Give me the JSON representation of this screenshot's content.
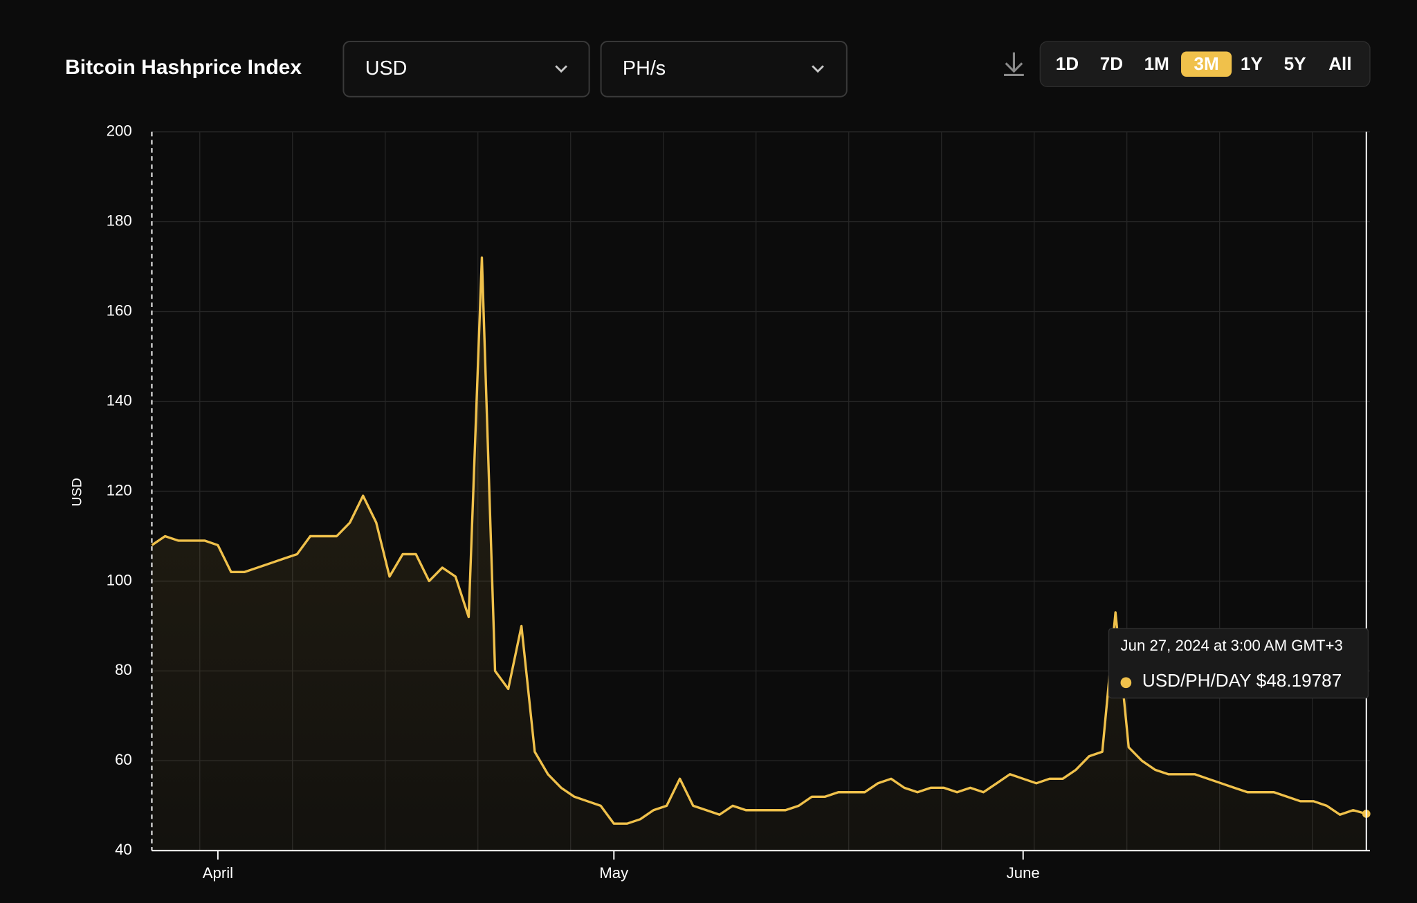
{
  "header": {
    "title": "Bitcoin Hashprice Index",
    "currency": "USD",
    "unit": "PH/s",
    "ranges": [
      "1D",
      "7D",
      "1M",
      "3M",
      "1Y",
      "5Y",
      "All"
    ],
    "active_range": 3
  },
  "chart_data": {
    "type": "area",
    "ylabel": "USD",
    "categories": [
      null,
      null,
      null,
      null,
      null,
      "April",
      null,
      null,
      null,
      null,
      null,
      null,
      null,
      null,
      null,
      null,
      null,
      null,
      null,
      null,
      null,
      null,
      null,
      null,
      null,
      null,
      null,
      null,
      null,
      null,
      null,
      null,
      null,
      null,
      null,
      "May",
      null,
      null,
      null,
      null,
      null,
      null,
      null,
      null,
      null,
      null,
      null,
      null,
      null,
      null,
      null,
      null,
      null,
      null,
      null,
      null,
      null,
      null,
      null,
      null,
      null,
      null,
      null,
      null,
      null,
      null,
      "June",
      null,
      null,
      null,
      null,
      null,
      null,
      null,
      null,
      null,
      null,
      null,
      null,
      null,
      null,
      null,
      null,
      null,
      null,
      null,
      null,
      null,
      null,
      null,
      null,
      null,
      null
    ],
    "series": [
      {
        "name": "USD/PH/DAY",
        "color": "#f0c14b",
        "values": [
          108,
          110,
          109,
          109,
          109,
          108,
          102,
          102,
          103,
          104,
          105,
          106,
          110,
          110,
          110,
          113,
          119,
          113,
          101,
          106,
          106,
          100,
          103,
          101,
          92,
          172,
          80,
          76,
          90,
          62,
          57,
          54,
          52,
          51,
          50,
          46,
          46,
          47,
          49,
          50,
          56,
          50,
          49,
          48,
          50,
          49,
          49,
          49,
          49,
          50,
          52,
          52,
          53,
          53,
          53,
          55,
          56,
          54,
          53,
          54,
          54,
          53,
          54,
          53,
          55,
          57,
          56,
          55,
          56,
          56,
          58,
          61,
          62,
          93,
          63,
          60,
          58,
          57,
          57,
          57,
          56,
          55,
          54,
          53,
          53,
          53,
          52,
          51,
          51,
          50,
          48,
          49,
          48.19787
        ]
      }
    ],
    "ylim": [
      40,
      200
    ],
    "yticks": [
      40,
      60,
      80,
      100,
      120,
      140,
      160,
      180,
      200
    ],
    "grid": true,
    "tooltip": {
      "title": "Jun 27, 2024 at 3:00 AM GMT+3",
      "value_label": "$48.19787"
    }
  }
}
